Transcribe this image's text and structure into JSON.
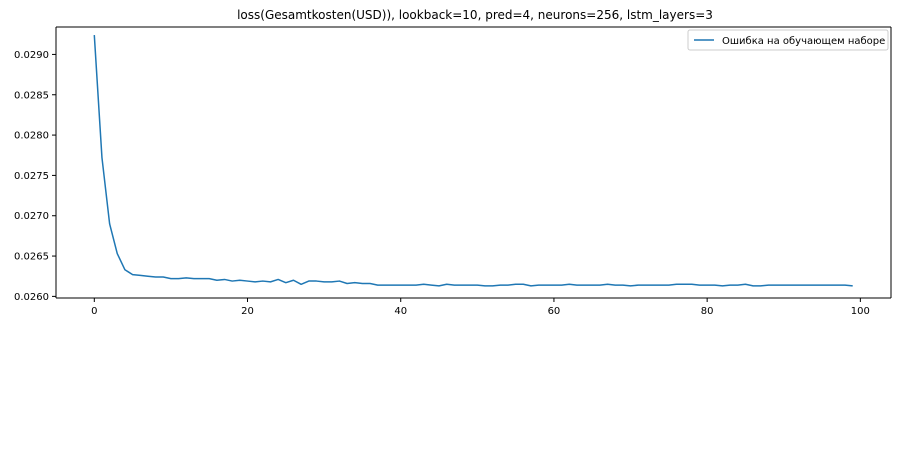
{
  "chart_data": {
    "type": "line",
    "title": "loss(Gesamtkosten(USD)), lookback=10, pred=4, neurons=256, lstm_layers=3",
    "xlabel": "",
    "ylabel": "",
    "xlim": [
      -5,
      104
    ],
    "ylim": [
      0.02598,
      0.02934
    ],
    "xticks": [
      0,
      20,
      40,
      60,
      80,
      100
    ],
    "yticks": [
      0.026,
      0.0265,
      0.027,
      0.0275,
      0.028,
      0.0285,
      0.029
    ],
    "ytick_labels": [
      "0.0260",
      "0.0265",
      "0.0270",
      "0.0275",
      "0.0280",
      "0.0285",
      "0.0290"
    ],
    "grid": false,
    "legend_position": "top-right",
    "series": [
      {
        "name": "Ошибка на обучающем наборе",
        "color": "#1f77b4",
        "x": [
          0,
          1,
          2,
          3,
          4,
          5,
          6,
          7,
          8,
          9,
          10,
          11,
          12,
          13,
          14,
          15,
          16,
          17,
          18,
          19,
          20,
          21,
          22,
          23,
          24,
          25,
          26,
          27,
          28,
          29,
          30,
          31,
          32,
          33,
          34,
          35,
          36,
          37,
          38,
          39,
          40,
          41,
          42,
          43,
          44,
          45,
          46,
          47,
          48,
          49,
          50,
          51,
          52,
          53,
          54,
          55,
          56,
          57,
          58,
          59,
          60,
          61,
          62,
          63,
          64,
          65,
          66,
          67,
          68,
          69,
          70,
          71,
          72,
          73,
          74,
          75,
          76,
          77,
          78,
          79,
          80,
          81,
          82,
          83,
          84,
          85,
          86,
          87,
          88,
          89,
          90,
          91,
          92,
          93,
          94,
          95,
          96,
          97,
          98,
          99
        ],
        "values": [
          0.02924,
          0.02772,
          0.0269,
          0.02653,
          0.02633,
          0.02627,
          0.02626,
          0.02625,
          0.02624,
          0.02624,
          0.02622,
          0.02622,
          0.02623,
          0.02622,
          0.02622,
          0.02622,
          0.0262,
          0.02621,
          0.02619,
          0.0262,
          0.02619,
          0.02618,
          0.02619,
          0.02618,
          0.02621,
          0.02617,
          0.0262,
          0.02615,
          0.02619,
          0.02619,
          0.02618,
          0.02618,
          0.02619,
          0.02616,
          0.02617,
          0.02616,
          0.02616,
          0.02614,
          0.02614,
          0.02614,
          0.02614,
          0.02614,
          0.02614,
          0.02615,
          0.02614,
          0.02613,
          0.02615,
          0.02614,
          0.02614,
          0.02614,
          0.02614,
          0.02613,
          0.02613,
          0.02614,
          0.02614,
          0.02615,
          0.02615,
          0.02613,
          0.02614,
          0.02614,
          0.02614,
          0.02614,
          0.02615,
          0.02614,
          0.02614,
          0.02614,
          0.02614,
          0.02615,
          0.02614,
          0.02614,
          0.02613,
          0.02614,
          0.02614,
          0.02614,
          0.02614,
          0.02614,
          0.02615,
          0.02615,
          0.02615,
          0.02614,
          0.02614,
          0.02614,
          0.02613,
          0.02614,
          0.02614,
          0.02615,
          0.02613,
          0.02613,
          0.02614,
          0.02614,
          0.02614,
          0.02614,
          0.02614,
          0.02614,
          0.02614,
          0.02614,
          0.02614,
          0.02614,
          0.02614,
          0.02613
        ]
      }
    ]
  }
}
